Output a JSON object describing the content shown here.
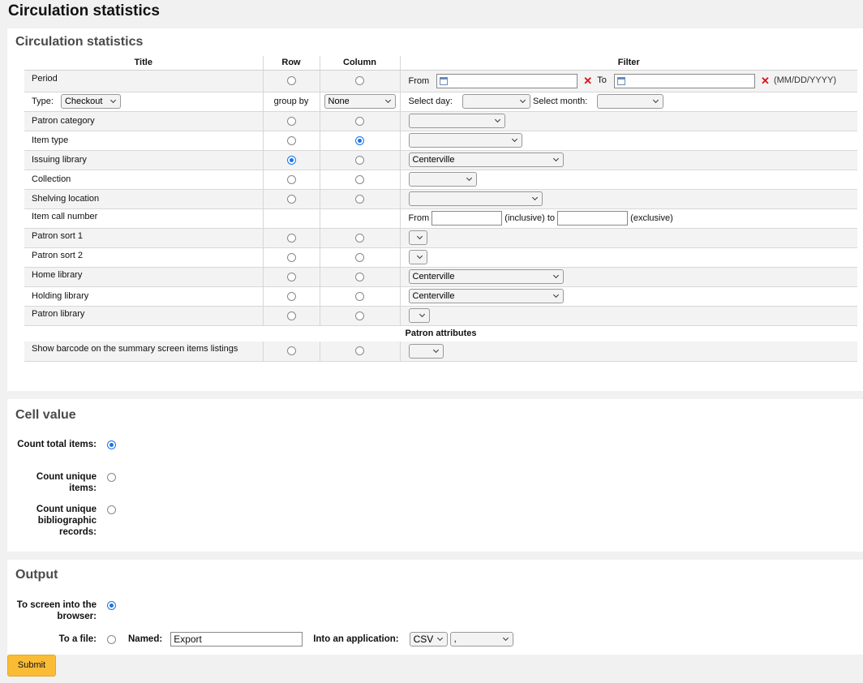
{
  "page": {
    "title": "Circulation statistics"
  },
  "stats": {
    "heading": "Circulation statistics",
    "columns": [
      "Title",
      "Row",
      "Column",
      "Filter"
    ],
    "period": {
      "label": "Period",
      "from_label": "From",
      "to_label": "To",
      "from_value": "",
      "to_value": "",
      "date_format": "(MM/DD/YYYY)"
    },
    "type_row": {
      "type_label": "Type:",
      "type_value": "Checkout",
      "group_by_label": "group by",
      "group_by_value": "None",
      "select_day_label": "Select day:",
      "select_day_value": "",
      "select_month_label": "Select month:",
      "select_month_value": ""
    },
    "rows": [
      {
        "label": "Patron category",
        "row": false,
        "column": false,
        "filter": ""
      },
      {
        "label": "Item type",
        "row": false,
        "column": true,
        "filter": ""
      },
      {
        "label": "Issuing library",
        "row": true,
        "column": false,
        "filter": "Centerville"
      },
      {
        "label": "Collection",
        "row": false,
        "column": false,
        "filter": ""
      },
      {
        "label": "Shelving location",
        "row": false,
        "column": false,
        "filter": ""
      }
    ],
    "call_number": {
      "label": "Item call number",
      "from_label": "From",
      "inclusive_label": "(inclusive) to",
      "exclusive_label": "(exclusive)",
      "from_value": "",
      "to_value": ""
    },
    "rows2": [
      {
        "label": "Patron sort 1",
        "filter": ""
      },
      {
        "label": "Patron sort 2",
        "filter": ""
      },
      {
        "label": "Home library",
        "filter": "Centerville"
      },
      {
        "label": "Holding library",
        "filter": "Centerville"
      },
      {
        "label": "Patron library",
        "filter": ""
      }
    ],
    "patron_attributes_heading": "Patron attributes",
    "barcode_row": {
      "label": "Show barcode on the summary screen items listings",
      "filter": ""
    }
  },
  "cell_value": {
    "heading": "Cell value",
    "options": [
      {
        "label": "Count total items:",
        "checked": true
      },
      {
        "label": "Count unique items:",
        "checked": false
      },
      {
        "label": "Count unique bibliographic records:",
        "checked": false
      }
    ]
  },
  "output": {
    "heading": "Output",
    "to_screen_label": "To screen into the browser:",
    "to_file_label": "To a file:",
    "named_label": "Named:",
    "named_value": "Export",
    "into_app_label": "Into an application:",
    "format_value": "CSV",
    "delimiter_value": ","
  },
  "submit_label": "Submit",
  "colors": {
    "accent": "#1a73e8",
    "submit": "#fbbc35",
    "clear": "#dd1111"
  }
}
